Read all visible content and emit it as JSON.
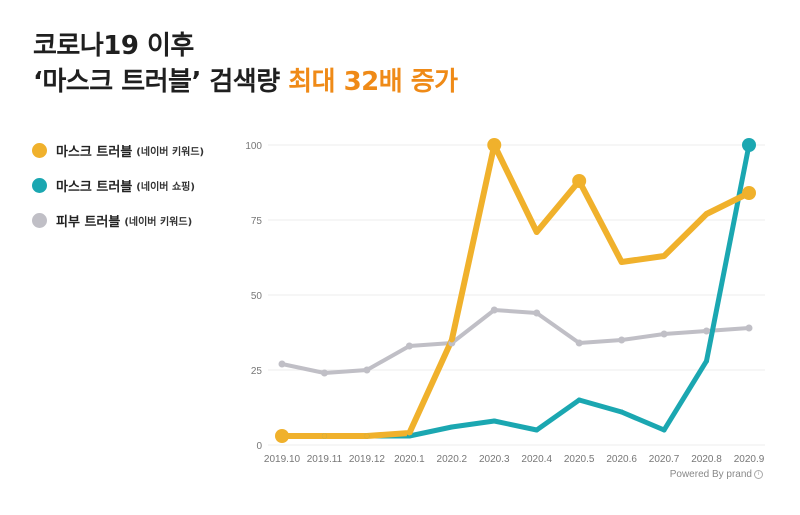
{
  "header": {
    "title_line1": "코로나19 이후",
    "title_line2_main": "‘마스크 트러블’ 검색량 ",
    "title_line2_highlight": "최대 32배 증가"
  },
  "footer": {
    "powered_by": "Powered By prand",
    "info_icon": "info-icon"
  },
  "colors": {
    "mask_keyword": "#f0b12c",
    "mask_shopping": "#1ba7b1",
    "skin_keyword": "#c0bfc6",
    "highlight": "#ef8a17"
  },
  "chart_data": {
    "type": "line",
    "categories": [
      "2019.10",
      "2019.11",
      "2019.12",
      "2020.1",
      "2020.2",
      "2020.3",
      "2020.4",
      "2020.5",
      "2020.6",
      "2020.7",
      "2020.8",
      "2020.9"
    ],
    "ylim": [
      0,
      100
    ],
    "yticks": [
      0,
      25,
      50,
      75,
      100
    ],
    "grid": true,
    "legend_position": "left",
    "series": [
      {
        "name": "마스크 트러블",
        "note": "(네이버 키워드)",
        "color": "#f0b12c",
        "values": [
          3,
          3,
          3,
          4,
          35,
          100,
          71,
          88,
          61,
          63,
          77,
          84
        ],
        "highlight_points": [
          0,
          5,
          7,
          11
        ]
      },
      {
        "name": "마스크 트러블",
        "note": "(네이버 쇼핑)",
        "color": "#1ba7b1",
        "values": [
          3,
          3,
          3,
          3,
          6,
          8,
          5,
          15,
          11,
          5,
          28,
          100
        ],
        "highlight_points": [
          11
        ]
      },
      {
        "name": "피부 트러블",
        "note": "(네이버 키워드)",
        "color": "#c0bfc6",
        "values": [
          27,
          24,
          25,
          33,
          34,
          45,
          44,
          34,
          35,
          37,
          38,
          39
        ],
        "highlight_points": []
      }
    ]
  }
}
